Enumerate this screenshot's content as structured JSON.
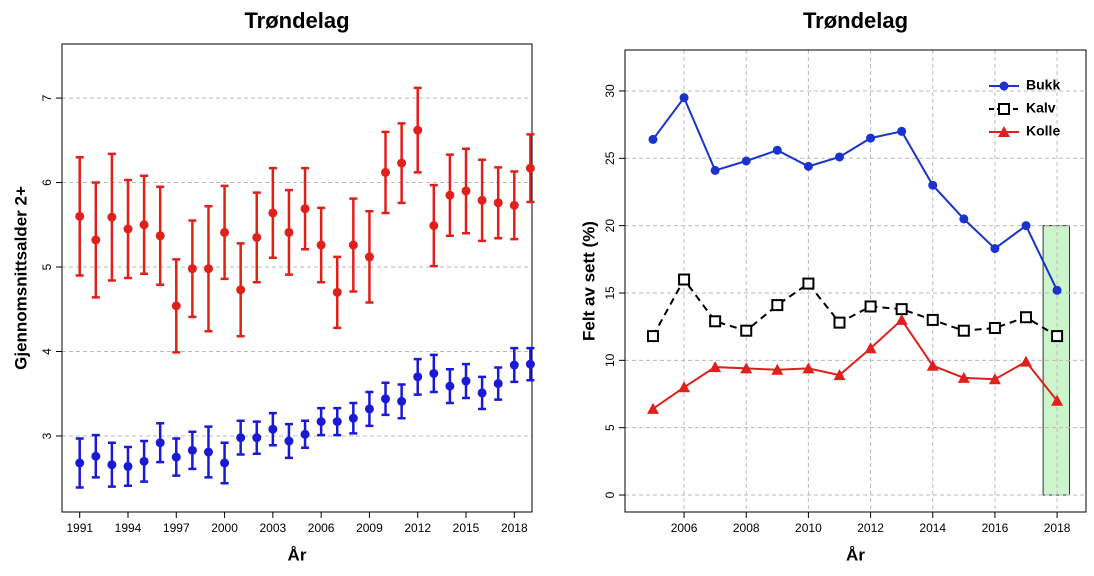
{
  "chart_data": [
    {
      "type": "errorbar",
      "title": "Trøndelag",
      "x_label": "År",
      "y_label": "Gjennomsnittsalder 2+",
      "x": [
        1991,
        1992,
        1993,
        1994,
        1995,
        1996,
        1997,
        1998,
        1999,
        2000,
        2001,
        2002,
        2003,
        2004,
        2005,
        2006,
        2007,
        2008,
        2009,
        2010,
        2011,
        2012,
        2013,
        2014,
        2015,
        2016,
        2017,
        2018,
        2019
      ],
      "series": [
        {
          "color": "#e0201b",
          "values": [
            5.6,
            5.32,
            5.59,
            5.45,
            5.5,
            5.37,
            4.54,
            4.98,
            4.98,
            5.41,
            4.73,
            5.35,
            5.64,
            5.41,
            5.69,
            5.26,
            4.7,
            5.26,
            5.12,
            6.12,
            6.23,
            6.62,
            5.49,
            5.85,
            5.9,
            5.79,
            5.76,
            5.73,
            6.17
          ],
          "err": [
            0.7,
            0.68,
            0.75,
            0.58,
            0.58,
            0.58,
            0.55,
            0.57,
            0.74,
            0.55,
            0.55,
            0.53,
            0.53,
            0.5,
            0.48,
            0.44,
            0.42,
            0.55,
            0.54,
            0.48,
            0.47,
            0.5,
            0.48,
            0.48,
            0.5,
            0.48,
            0.42,
            0.4,
            0.4
          ]
        },
        {
          "color": "#1a1ad6",
          "values": [
            2.68,
            2.76,
            2.66,
            2.64,
            2.7,
            2.92,
            2.75,
            2.83,
            2.81,
            2.68,
            2.98,
            2.98,
            3.08,
            2.94,
            3.02,
            3.17,
            3.17,
            3.21,
            3.32,
            3.44,
            3.41,
            3.7,
            3.74,
            3.59,
            3.65,
            3.51,
            3.62,
            3.84,
            3.85
          ],
          "err": [
            0.29,
            0.25,
            0.26,
            0.23,
            0.24,
            0.23,
            0.22,
            0.22,
            0.3,
            0.24,
            0.2,
            0.19,
            0.19,
            0.2,
            0.16,
            0.16,
            0.16,
            0.18,
            0.2,
            0.19,
            0.2,
            0.21,
            0.22,
            0.2,
            0.2,
            0.19,
            0.19,
            0.2,
            0.19
          ]
        }
      ],
      "xlim": [
        1989.9,
        2019.1
      ],
      "xticks": [
        1991,
        1994,
        1997,
        2000,
        2003,
        2006,
        2009,
        2012,
        2015,
        2018
      ],
      "ylim": [
        2.1,
        7.64
      ],
      "yticks": [
        3,
        4,
        5,
        6,
        7
      ],
      "grid": "y"
    },
    {
      "type": "line",
      "title": "Trøndelag",
      "x_label": "År",
      "y_label": "Felt av sett (%)",
      "x": [
        2005,
        2006,
        2007,
        2008,
        2009,
        2010,
        2011,
        2012,
        2013,
        2014,
        2015,
        2016,
        2017,
        2018
      ],
      "series": [
        {
          "name": "Bukk",
          "color": "#1a33cc",
          "marker": "circle",
          "dash": false,
          "values": [
            26.4,
            29.5,
            24.1,
            24.8,
            25.6,
            24.4,
            25.1,
            26.5,
            27.0,
            23.0,
            20.5,
            18.3,
            20.0,
            15.2
          ]
        },
        {
          "name": "Kalv",
          "color": "#000000",
          "marker": "square",
          "dash": true,
          "values": [
            11.8,
            16.0,
            12.9,
            12.2,
            14.1,
            15.7,
            12.8,
            14.0,
            13.8,
            13.0,
            12.2,
            12.4,
            13.2,
            11.8
          ]
        },
        {
          "name": "Kolle",
          "color": "#e0201b",
          "marker": "triangle",
          "dash": false,
          "values": [
            6.4,
            8.0,
            9.5,
            9.4,
            9.3,
            9.4,
            8.9,
            10.9,
            13.0,
            9.6,
            8.7,
            8.6,
            9.9,
            7.0
          ]
        }
      ],
      "highlight": {
        "x": [
          2017.55,
          2018.4
        ],
        "y": [
          0,
          20
        ],
        "color": "#ccf5cc"
      },
      "xlim": [
        2004.1,
        2018.93
      ],
      "xticks": [
        2006,
        2008,
        2010,
        2012,
        2014,
        2016,
        2018
      ],
      "ylim": [
        -1.26,
        33.04
      ],
      "yticks": [
        0,
        5,
        10,
        15,
        20,
        25,
        30
      ],
      "grid": "xy",
      "legend": "top-right"
    }
  ]
}
